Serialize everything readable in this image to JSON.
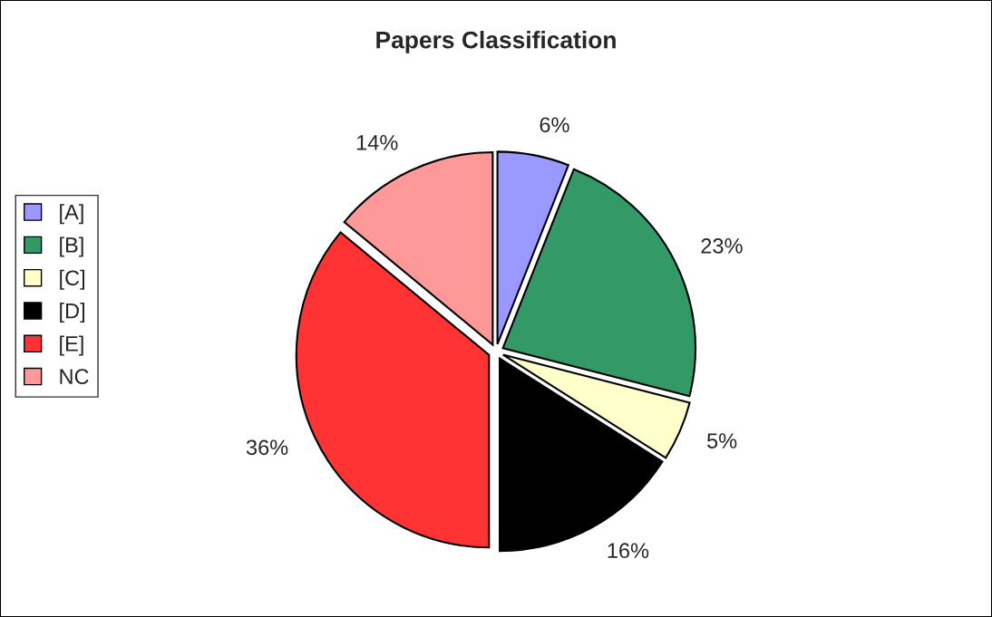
{
  "chart_data": {
    "type": "pie",
    "title": "Papers Classification",
    "categories": [
      "[A]",
      "[B]",
      "[C]",
      "[D]",
      "[E]",
      "NC"
    ],
    "values": [
      6,
      23,
      5,
      16,
      36,
      14
    ],
    "value_labels": [
      "6%",
      "23%",
      "5%",
      "16%",
      "36%",
      "14%"
    ],
    "colors": [
      "#9999ff",
      "#339966",
      "#ffffcc",
      "#000000",
      "#ff3333",
      "#ff9999"
    ],
    "legend": "left"
  }
}
